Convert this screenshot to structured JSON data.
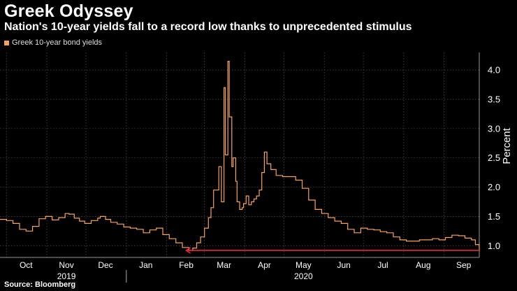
{
  "header": {
    "title": "Greek Odyssey",
    "subtitle": "Nation's 10-year yields fall to a record low thanks to unprecedented stimulus"
  },
  "footer": {
    "source": "Source: Bloomberg"
  },
  "colors": {
    "series": "#f4a460",
    "reference": "#e8263d",
    "grid": "#555555",
    "background": "#000000",
    "text": "#ffffff"
  },
  "chart_data": {
    "type": "line",
    "legend": [
      {
        "name": "Greek 10-year bond yields",
        "color": "#f4a460"
      }
    ],
    "ylabel": "Percent",
    "ylim": [
      0.8,
      4.3
    ],
    "yticks": [
      "1.0",
      "1.5",
      "2.0",
      "2.5",
      "3.0",
      "3.5",
      "4.0"
    ],
    "ytick_values": [
      1.0,
      1.5,
      2.0,
      2.5,
      3.0,
      3.5,
      4.0
    ],
    "xlim_days": [
      -5,
      363
    ],
    "months": [
      {
        "label": "Oct",
        "day": 15
      },
      {
        "label": "Nov",
        "day": 46
      },
      {
        "label": "Dec",
        "day": 76
      },
      {
        "label": "Jan",
        "day": 107
      },
      {
        "label": "Feb",
        "day": 138
      },
      {
        "label": "Mar",
        "day": 167
      },
      {
        "label": "Apr",
        "day": 198
      },
      {
        "label": "May",
        "day": 228
      },
      {
        "label": "Jun",
        "day": 259
      },
      {
        "label": "Jul",
        "day": 289
      },
      {
        "label": "Aug",
        "day": 320
      },
      {
        "label": "Sep",
        "day": 351
      }
    ],
    "year_labels": [
      {
        "label": "2019",
        "day": 46
      },
      {
        "label": "2020",
        "day": 228
      }
    ],
    "separator_day": 92,
    "series": [
      {
        "name": "Greek 10-year bond yields",
        "x": [
          -5,
          0,
          5,
          10,
          15,
          20,
          25,
          30,
          35,
          40,
          45,
          48,
          52,
          56,
          60,
          65,
          70,
          72,
          76,
          80,
          85,
          90,
          95,
          100,
          105,
          110,
          115,
          120,
          125,
          130,
          135,
          140,
          143,
          146,
          149,
          152,
          155,
          157,
          159,
          161,
          163,
          165,
          167,
          168,
          170,
          171,
          173,
          174,
          176,
          177,
          179,
          181,
          182,
          184,
          186,
          188,
          190,
          192,
          194,
          196,
          198,
          200,
          203,
          207,
          212,
          217,
          222,
          227,
          232,
          237,
          242,
          247,
          252,
          257,
          262,
          267,
          272,
          277,
          282,
          287,
          292,
          297,
          302,
          307,
          312,
          317,
          322,
          327,
          332,
          337,
          342,
          347,
          352,
          357,
          360,
          363
        ],
        "values": [
          1.45,
          1.43,
          1.38,
          1.28,
          1.25,
          1.33,
          1.46,
          1.5,
          1.44,
          1.48,
          1.55,
          1.54,
          1.47,
          1.42,
          1.38,
          1.43,
          1.47,
          1.5,
          1.45,
          1.4,
          1.37,
          1.32,
          1.3,
          1.28,
          1.22,
          1.27,
          1.3,
          1.19,
          1.12,
          1.05,
          0.97,
          0.92,
          0.96,
          1.05,
          1.15,
          1.3,
          1.48,
          1.65,
          1.95,
          1.95,
          2.35,
          1.75,
          3.7,
          2.55,
          4.15,
          3.2,
          2.35,
          2.5,
          2.1,
          1.75,
          1.62,
          1.65,
          1.72,
          1.85,
          1.7,
          1.75,
          1.8,
          1.85,
          1.95,
          2.25,
          2.6,
          2.4,
          2.3,
          2.2,
          2.18,
          2.18,
          2.12,
          1.98,
          1.78,
          1.62,
          1.55,
          1.48,
          1.42,
          1.38,
          1.28,
          1.22,
          1.3,
          1.28,
          1.27,
          1.24,
          1.22,
          1.15,
          1.1,
          1.08,
          1.08,
          1.1,
          1.1,
          1.12,
          1.1,
          1.14,
          1.18,
          1.17,
          1.13,
          1.1,
          1.02,
          0.92
        ]
      }
    ],
    "annotation": {
      "type": "arrow",
      "from_day": 363,
      "to_day": 138,
      "y": 0.92,
      "color": "#e8263d"
    }
  }
}
